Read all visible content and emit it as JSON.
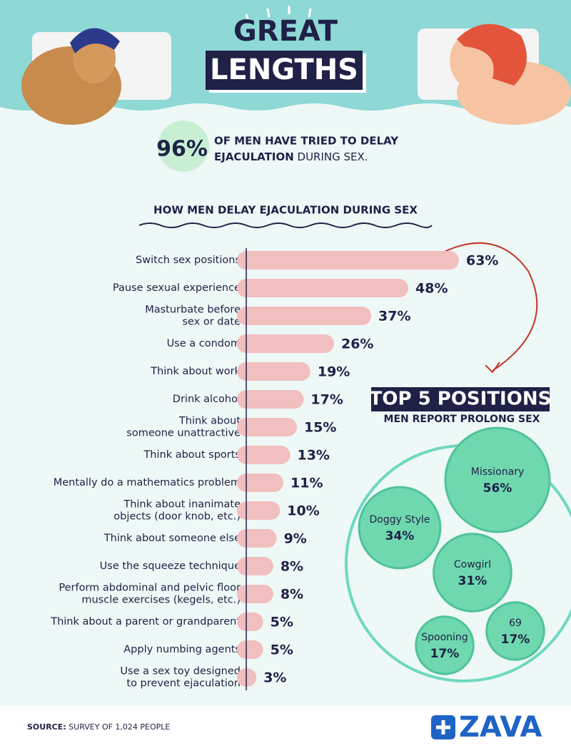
{
  "header": {
    "title_top": "GREAT",
    "title_bottom": "LENGTHS"
  },
  "stat": {
    "figure": "96%",
    "line1": "OF MEN HAVE TRIED TO DELAY",
    "line2_bold": "EJACULATION",
    "line2_rest": "DURING SEX."
  },
  "chart_data": [
    {
      "type": "bar",
      "orientation": "horizontal",
      "title": "HOW MEN DELAY EJACULATION DURING SEX",
      "color": "#f1bfbf",
      "categories": [
        "Switch sex positions",
        "Pause sexual experience",
        "Masturbate before\nsex or date",
        "Use a condom",
        "Think about work",
        "Drink alcohol",
        "Think about\nsomeone unattractive",
        "Think about sports",
        "Mentally do a mathematics problem",
        "Think about inanimate\nobjects (door knob, etc.)",
        "Think about someone else",
        "Use the squeeze technique",
        "Perform abdominal and pelvic floor\nmuscle exercises (kegels, etc.)",
        "Think about a parent or grandparent",
        "Apply numbing agents",
        "Use a sex toy designed\nto prevent ejaculation"
      ],
      "values": [
        63,
        48,
        37,
        26,
        19,
        17,
        15,
        13,
        11,
        10,
        9,
        8,
        8,
        5,
        5,
        3
      ],
      "value_labels": [
        "63%",
        "48%",
        "37%",
        "26%",
        "19%",
        "17%",
        "15%",
        "13%",
        "11%",
        "10%",
        "9%",
        "8%",
        "8%",
        "5%",
        "5%",
        "3%"
      ]
    },
    {
      "type": "bubble",
      "title": "TOP 5 POSITIONS",
      "subtitle": "MEN REPORT PROLONG SEX",
      "color": "#6fd8ae",
      "categories": [
        "Missionary",
        "Doggy Style",
        "Cowgirl",
        "Spooning",
        "69"
      ],
      "values": [
        56,
        34,
        31,
        17,
        17
      ],
      "value_labels": [
        "56%",
        "34%",
        "31%",
        "17%",
        "17%"
      ]
    }
  ],
  "source": {
    "label": "SOURCE:",
    "text": "SURVEY OF 1,024 PEOPLE"
  },
  "logo": "ZAVA"
}
